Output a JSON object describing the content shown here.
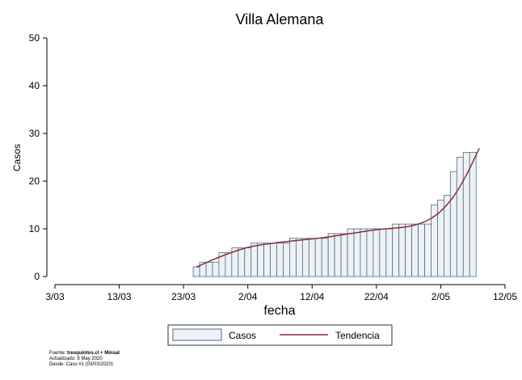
{
  "chart_data": {
    "type": "bar",
    "title": "Villa Alemana",
    "xlabel": "fecha",
    "ylabel": "Casos",
    "ylim": [
      0,
      50
    ],
    "yticks": [
      "0",
      "10",
      "20",
      "30",
      "40",
      "50"
    ],
    "xlim": [
      "2020-03-03",
      "2020-05-12"
    ],
    "xticks": [
      {
        "date": "2020-03-03",
        "label": "3/03"
      },
      {
        "date": "2020-03-13",
        "label": "13/03"
      },
      {
        "date": "2020-03-23",
        "label": "23/03"
      },
      {
        "date": "2020-04-02",
        "label": "2/04"
      },
      {
        "date": "2020-04-12",
        "label": "12/04"
      },
      {
        "date": "2020-04-22",
        "label": "22/04"
      },
      {
        "date": "2020-05-02",
        "label": "2/05"
      },
      {
        "date": "2020-05-12",
        "label": "12/05"
      }
    ],
    "grid": false,
    "legend_position": "bottom",
    "series": [
      {
        "name": "Casos",
        "type": "bar",
        "color_fill": "#eef2f4",
        "color_edge": "#4e6a8a",
        "x": [
          "2020-03-25",
          "2020-03-26",
          "2020-03-27",
          "2020-03-28",
          "2020-03-29",
          "2020-03-30",
          "2020-03-31",
          "2020-04-01",
          "2020-04-02",
          "2020-04-03",
          "2020-04-04",
          "2020-04-05",
          "2020-04-06",
          "2020-04-07",
          "2020-04-08",
          "2020-04-09",
          "2020-04-10",
          "2020-04-11",
          "2020-04-12",
          "2020-04-13",
          "2020-04-14",
          "2020-04-15",
          "2020-04-16",
          "2020-04-17",
          "2020-04-18",
          "2020-04-19",
          "2020-04-20",
          "2020-04-21",
          "2020-04-22",
          "2020-04-23",
          "2020-04-24",
          "2020-04-25",
          "2020-04-26",
          "2020-04-27",
          "2020-04-28",
          "2020-04-29",
          "2020-04-30",
          "2020-05-01",
          "2020-05-02",
          "2020-05-03",
          "2020-05-04",
          "2020-05-05",
          "2020-05-06",
          "2020-05-07"
        ],
        "values": [
          2,
          3,
          3,
          3,
          5,
          5,
          6,
          6,
          6,
          7,
          7,
          7,
          7,
          7,
          7,
          8,
          8,
          8,
          8,
          8,
          8,
          9,
          9,
          9,
          10,
          10,
          10,
          10,
          10,
          10,
          10,
          11,
          11,
          11,
          11,
          11,
          11,
          15,
          16,
          17,
          22,
          25,
          26,
          26
        ]
      },
      {
        "name": "Tendencia",
        "type": "line",
        "color": "#8b2f3a",
        "x": [
          "2020-03-25",
          "2020-03-29",
          "2020-04-02",
          "2020-04-06",
          "2020-04-10",
          "2020-04-14",
          "2020-04-18",
          "2020-04-22",
          "2020-04-26",
          "2020-04-28",
          "2020-04-30",
          "2020-05-02",
          "2020-05-04",
          "2020-05-06",
          "2020-05-08"
        ],
        "values": [
          2,
          4.3,
          6.1,
          7,
          7.6,
          8.2,
          9,
          9.8,
          10.3,
          10.8,
          11.8,
          13.7,
          16.8,
          21.3,
          26.9
        ]
      }
    ]
  },
  "source": {
    "line1_prefix": "Fuente: ",
    "line1_bold": "tresquintos.cl + Minsal",
    "line2": "Actualizado: 8 May 2020",
    "line3": "Desde: Caso #1  (03/03/2020)"
  }
}
